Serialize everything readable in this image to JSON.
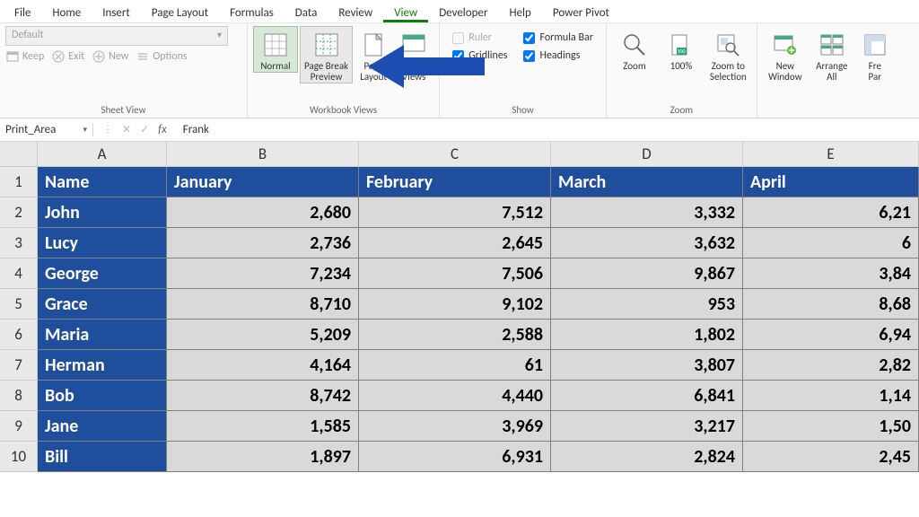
{
  "tabs": [
    "File",
    "Home",
    "Insert",
    "Page Layout",
    "Formulas",
    "Data",
    "Review",
    "View",
    "Developer",
    "Help",
    "Power Pivot"
  ],
  "active_tab": "View",
  "sheetview": {
    "dropdown": "Default",
    "keep": "Keep",
    "exit": "Exit",
    "new": "New",
    "options": "Options",
    "group_label": "Sheet View"
  },
  "workbook_views": {
    "normal": "Normal",
    "page_break": "Page Break\nPreview",
    "page_layout": "Page\nLayout",
    "custom": "Custom\nViews",
    "group_label": "Workbook Views"
  },
  "show": {
    "ruler": "Ruler",
    "formula_bar": "Formula Bar",
    "gridlines": "Gridlines",
    "headings": "Headings",
    "group_label": "Show"
  },
  "zoom_group": {
    "zoom": "Zoom",
    "hundred": "100%",
    "to_selection": "Zoom to\nSelection",
    "group_label": "Zoom"
  },
  "window_group": {
    "new_window": "New\nWindow",
    "arrange": "Arrange\nAll",
    "freeze": "Fre\nPar"
  },
  "formula_bar": {
    "name_box": "Print_Area",
    "value": "Frank"
  },
  "columns": [
    "A",
    "B",
    "C",
    "D",
    "E"
  ],
  "header_row": [
    "Name",
    "January",
    "February",
    "March",
    "April"
  ],
  "rows": [
    {
      "n": "1"
    },
    {
      "n": "2",
      "name": "John",
      "vals": [
        "2,680",
        "7,512",
        "3,332",
        "6,21"
      ]
    },
    {
      "n": "3",
      "name": "Lucy",
      "vals": [
        "2,736",
        "2,645",
        "3,632",
        "6"
      ]
    },
    {
      "n": "4",
      "name": "George",
      "vals": [
        "7,234",
        "7,506",
        "9,867",
        "3,84"
      ]
    },
    {
      "n": "5",
      "name": "Grace",
      "vals": [
        "8,710",
        "9,102",
        "953",
        "8,68"
      ]
    },
    {
      "n": "6",
      "name": "Maria",
      "vals": [
        "5,209",
        "2,588",
        "1,802",
        "6,94"
      ]
    },
    {
      "n": "7",
      "name": "Herman",
      "vals": [
        "4,164",
        "61",
        "3,807",
        "2,82"
      ]
    },
    {
      "n": "8",
      "name": "Bob",
      "vals": [
        "8,742",
        "4,440",
        "6,841",
        "1,14"
      ]
    },
    {
      "n": "9",
      "name": "Jane",
      "vals": [
        "1,585",
        "3,969",
        "3,217",
        "1,50"
      ]
    },
    {
      "n": "10",
      "name": "Bill",
      "vals": [
        "1,897",
        "6,931",
        "2,824",
        "2,45"
      ]
    }
  ],
  "colors": {
    "header_bg": "#1f4e9c",
    "cell_bg": "#d9d9d9",
    "arrow": "#1c4db3"
  }
}
